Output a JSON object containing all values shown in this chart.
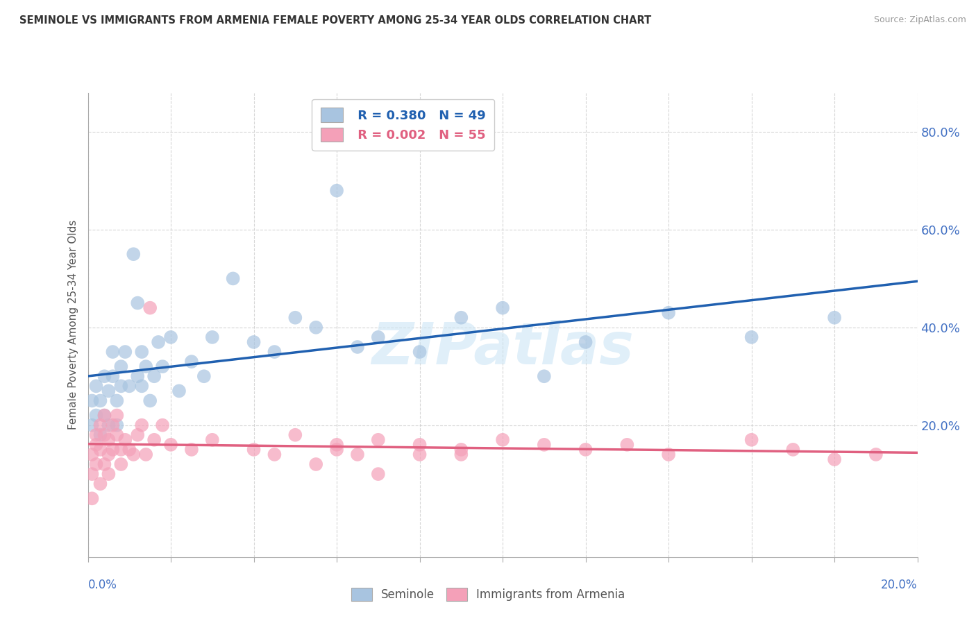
{
  "title": "SEMINOLE VS IMMIGRANTS FROM ARMENIA FEMALE POVERTY AMONG 25-34 YEAR OLDS CORRELATION CHART",
  "source": "Source: ZipAtlas.com",
  "ylabel": "Female Poverty Among 25-34 Year Olds",
  "yticks": [
    "20.0%",
    "40.0%",
    "60.0%",
    "80.0%"
  ],
  "ytick_vals": [
    0.2,
    0.4,
    0.6,
    0.8
  ],
  "xlim": [
    0.0,
    0.2
  ],
  "ylim": [
    -0.07,
    0.88
  ],
  "watermark": "ZIPatlas",
  "legend_r1": "R = 0.380",
  "legend_n1": "N = 49",
  "legend_r2": "R = 0.002",
  "legend_n2": "N = 55",
  "seminole_color": "#a8c4e0",
  "armenia_color": "#f4a0b8",
  "seminole_line_color": "#2060b0",
  "armenia_line_color": "#e06080",
  "grid_color": "#cccccc",
  "background_color": "#ffffff",
  "seminole_x": [
    0.001,
    0.001,
    0.002,
    0.002,
    0.003,
    0.003,
    0.004,
    0.004,
    0.005,
    0.005,
    0.006,
    0.006,
    0.007,
    0.007,
    0.008,
    0.008,
    0.009,
    0.01,
    0.011,
    0.012,
    0.012,
    0.013,
    0.013,
    0.014,
    0.015,
    0.016,
    0.017,
    0.018,
    0.02,
    0.022,
    0.025,
    0.028,
    0.03,
    0.035,
    0.04,
    0.045,
    0.05,
    0.055,
    0.06,
    0.065,
    0.07,
    0.08,
    0.09,
    0.1,
    0.11,
    0.12,
    0.14,
    0.16,
    0.18
  ],
  "seminole_y": [
    0.2,
    0.25,
    0.22,
    0.28,
    0.18,
    0.25,
    0.22,
    0.3,
    0.2,
    0.27,
    0.3,
    0.35,
    0.25,
    0.2,
    0.28,
    0.32,
    0.35,
    0.28,
    0.55,
    0.45,
    0.3,
    0.35,
    0.28,
    0.32,
    0.25,
    0.3,
    0.37,
    0.32,
    0.38,
    0.27,
    0.33,
    0.3,
    0.38,
    0.5,
    0.37,
    0.35,
    0.42,
    0.4,
    0.68,
    0.36,
    0.38,
    0.35,
    0.42,
    0.44,
    0.3,
    0.37,
    0.43,
    0.38,
    0.42
  ],
  "armenia_x": [
    0.001,
    0.001,
    0.001,
    0.002,
    0.002,
    0.002,
    0.003,
    0.003,
    0.003,
    0.004,
    0.004,
    0.004,
    0.005,
    0.005,
    0.005,
    0.006,
    0.006,
    0.007,
    0.007,
    0.008,
    0.008,
    0.009,
    0.01,
    0.011,
    0.012,
    0.013,
    0.014,
    0.015,
    0.016,
    0.018,
    0.02,
    0.025,
    0.03,
    0.04,
    0.045,
    0.05,
    0.055,
    0.06,
    0.065,
    0.07,
    0.08,
    0.09,
    0.1,
    0.11,
    0.12,
    0.13,
    0.14,
    0.16,
    0.17,
    0.18,
    0.06,
    0.07,
    0.08,
    0.09,
    0.19
  ],
  "armenia_y": [
    0.14,
    0.1,
    0.05,
    0.16,
    0.12,
    0.18,
    0.2,
    0.15,
    0.08,
    0.18,
    0.12,
    0.22,
    0.17,
    0.1,
    0.14,
    0.2,
    0.15,
    0.18,
    0.22,
    0.15,
    0.12,
    0.17,
    0.15,
    0.14,
    0.18,
    0.2,
    0.14,
    0.44,
    0.17,
    0.2,
    0.16,
    0.15,
    0.17,
    0.15,
    0.14,
    0.18,
    0.12,
    0.15,
    0.14,
    0.1,
    0.16,
    0.14,
    0.17,
    0.16,
    0.15,
    0.16,
    0.14,
    0.17,
    0.15,
    0.13,
    0.16,
    0.17,
    0.14,
    0.15,
    0.14
  ]
}
